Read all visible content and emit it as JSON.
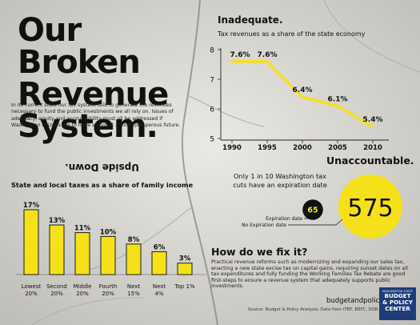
{
  "title": "Our Broken Revenue System.",
  "intro": "In its current state our tax system fails to generate the revenues necessary to fund the public investments we all rely on. Issues of adequacy, equity and accountability must all be addressed if Washington citizens are to have a shot at a more prosperous future.",
  "equity": {
    "heading": "Upside Down.",
    "subtitle": "State and local taxes as a share of family income"
  },
  "adequacy": {
    "heading": "Inadequate.",
    "subtitle": "Tax revenues as a share of the state economy"
  },
  "accountability": {
    "heading": "Unaccountable.",
    "subtitle_line1": "Only 1 in 10 Washington tax",
    "subtitle_line2": "cuts have an expiration date",
    "with_label": "Expiration date",
    "without_label": "No Expiration date"
  },
  "fix": {
    "heading": "How do we fix it?",
    "body": "Practical revenue reforms such as modernizing and expanding our sales tax, enacting a new state excise tax on capital gains, requiring sunset dates on all tax expenditures and fully funding the Working Families Tax Rebate are good first-steps to ensure a revenue system that adequately supports public investments."
  },
  "footer": {
    "site": "budgetandpolicy.org",
    "source": "Source: Budget & Policy Analysis; Data from ITEP, ERFC, DOR",
    "logo_line1": "WASHINGTON STATE",
    "logo_line2": "BUDGET",
    "logo_line3": "& POLICY",
    "logo_line4": "CENTER"
  },
  "colors": {
    "accent": "#f5e11a",
    "bar_border": "#1a1a1a",
    "text": "#111111",
    "logo": "#1f3c78"
  },
  "chart_data": [
    {
      "type": "bar",
      "categories": [
        "Lowest 20%",
        "Second 20%",
        "Middle 20%",
        "Fourth 20%",
        "Next 15%",
        "Next 4%",
        "Top 1%"
      ],
      "category_lines": [
        [
          "Lowest",
          "20%"
        ],
        [
          "Second",
          "20%"
        ],
        [
          "Middle",
          "20%"
        ],
        [
          "Fourth",
          "20%"
        ],
        [
          "Next",
          "15%"
        ],
        [
          "Next",
          "4%"
        ],
        [
          "Top 1%",
          ""
        ]
      ],
      "values": [
        17,
        13,
        11,
        10,
        8,
        6,
        3
      ],
      "labels": [
        "17%",
        "13%",
        "11%",
        "10%",
        "8%",
        "6%",
        "3%"
      ],
      "ylim": [
        0,
        17
      ],
      "grid": false
    },
    {
      "type": "line",
      "x": [
        1990,
        1995,
        2000,
        2005,
        2010
      ],
      "y": [
        7.6,
        7.6,
        6.4,
        6.1,
        5.4
      ],
      "labels": [
        "7.6%",
        "7.6%",
        "6.4%",
        "6.1%",
        "5.4%"
      ],
      "xticks": [
        "1990",
        "1995",
        "2000",
        "2005",
        "2010"
      ],
      "yticks": [
        "5",
        "6",
        "7",
        "8"
      ],
      "ylim": [
        5,
        8
      ],
      "xlim": [
        1990,
        2010
      ],
      "grid": false
    },
    {
      "type": "bubble",
      "categories": [
        "Expiration date",
        "No Expiration date"
      ],
      "values": [
        65,
        575
      ],
      "labels": [
        "65",
        "575"
      ]
    }
  ]
}
